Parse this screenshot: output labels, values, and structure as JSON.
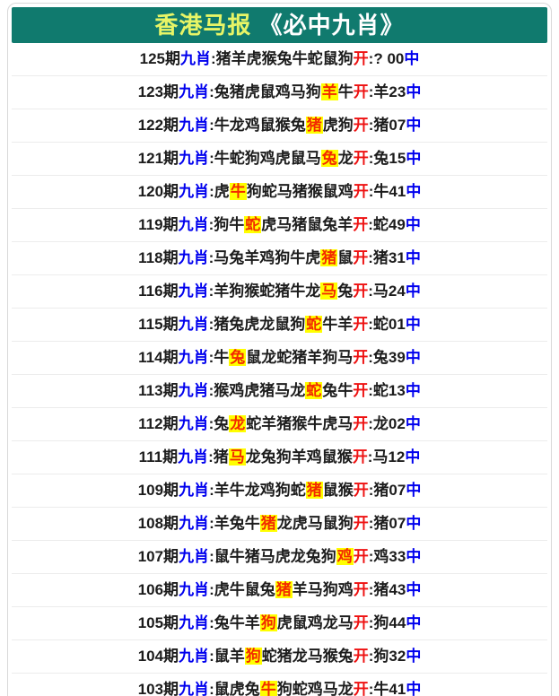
{
  "header": {
    "title_part1": "香港马报",
    "title_part2": "《必中九肖》"
  },
  "labels": {
    "tag": "九肖",
    "separator": ":",
    "open": "开",
    "hit": "中"
  },
  "colors": {
    "header_bg": "#107a6e",
    "title1": "#e8f566",
    "title2": "#ffffff",
    "text": "#1c1c1c",
    "tag": "#0000ee",
    "highlight_text": "#f32a00",
    "highlight_bg": "#ffff00",
    "open": "#ee1111",
    "hit": "#0000ee"
  },
  "rows": [
    {
      "period": "125期",
      "animals": "猪羊虎猴兔牛蛇鼠狗",
      "highlight_index": -1,
      "result": ":? 00"
    },
    {
      "period": "123期",
      "animals": "兔猪虎鼠鸡马狗羊牛",
      "highlight_index": 7,
      "result": ":羊23"
    },
    {
      "period": "122期",
      "animals": "牛龙鸡鼠猴兔猪虎狗",
      "highlight_index": 6,
      "result": ":猪07"
    },
    {
      "period": "121期",
      "animals": "牛蛇狗鸡虎鼠马兔龙",
      "highlight_index": 7,
      "result": ":兔15"
    },
    {
      "period": "120期",
      "animals": "虎牛狗蛇马猪猴鼠鸡",
      "highlight_index": 1,
      "result": ":牛41"
    },
    {
      "period": "119期",
      "animals": "狗牛蛇虎马猪鼠兔羊",
      "highlight_index": 2,
      "result": ":蛇49"
    },
    {
      "period": "118期",
      "animals": "马兔羊鸡狗牛虎猪鼠",
      "highlight_index": 7,
      "result": ":猪31"
    },
    {
      "period": "116期",
      "animals": "羊狗猴蛇猪牛龙马兔",
      "highlight_index": 7,
      "result": ":马24"
    },
    {
      "period": "115期",
      "animals": "猪兔虎龙鼠狗蛇牛羊",
      "highlight_index": 6,
      "result": ":蛇01"
    },
    {
      "period": "114期",
      "animals": "牛兔鼠龙蛇猪羊狗马",
      "highlight_index": 1,
      "result": ":兔39"
    },
    {
      "period": "113期",
      "animals": "猴鸡虎猪马龙蛇兔牛",
      "highlight_index": 6,
      "result": ":蛇13"
    },
    {
      "period": "112期",
      "animals": "兔龙蛇羊猪猴牛虎马",
      "highlight_index": 1,
      "result": ":龙02"
    },
    {
      "period": "111期",
      "animals": "猪马龙兔狗羊鸡鼠猴",
      "highlight_index": 1,
      "result": ":马12"
    },
    {
      "period": "109期",
      "animals": "羊牛龙鸡狗蛇猪鼠猴",
      "highlight_index": 6,
      "result": ":猪07"
    },
    {
      "period": "108期",
      "animals": "羊兔牛猪龙虎马鼠狗",
      "highlight_index": 3,
      "result": ":猪07"
    },
    {
      "period": "107期",
      "animals": "鼠牛猪马虎龙兔狗鸡",
      "highlight_index": 8,
      "result": ":鸡33"
    },
    {
      "period": "106期",
      "animals": "虎牛鼠兔猪羊马狗鸡",
      "highlight_index": 4,
      "result": ":猪43"
    },
    {
      "period": "105期",
      "animals": "兔牛羊狗虎鼠鸡龙马",
      "highlight_index": 3,
      "result": ":狗44"
    },
    {
      "period": "104期",
      "animals": "鼠羊狗蛇猪龙马猴兔",
      "highlight_index": 2,
      "result": ":狗32"
    },
    {
      "period": "103期",
      "animals": "鼠虎兔牛狗蛇鸡马龙",
      "highlight_index": 3,
      "result": ":牛41"
    }
  ]
}
